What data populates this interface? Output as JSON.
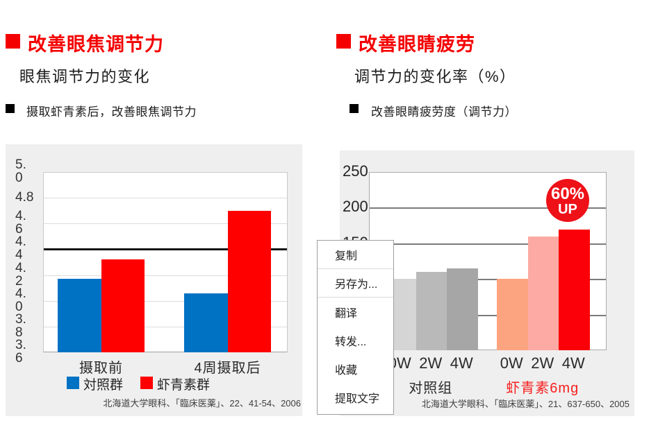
{
  "left_section": {
    "title": "改善眼焦调节力",
    "subtitle": "眼焦调节力的变化",
    "bullet": "摄取虾青素后，改善眼焦调节力",
    "accent_color": "#f40000"
  },
  "right_section": {
    "title": "改善眼睛疲劳",
    "subtitle": "调节力的变化率（%）",
    "bullet": "改善眼睛疲劳度（调节力）",
    "accent_color": "#f40000"
  },
  "context_menu": {
    "items": [
      {
        "name": "copy",
        "label": "复制"
      },
      {
        "name": "save-as",
        "label": "另存为..."
      },
      {
        "name": "translate",
        "label": "翻译"
      },
      {
        "name": "forward",
        "label": "转发..."
      },
      {
        "name": "favorite",
        "label": "收藏"
      },
      {
        "name": "extract-text",
        "label": "提取文字"
      }
    ],
    "dividers_after": [
      0,
      1
    ]
  },
  "chart_data": [
    {
      "type": "bar",
      "title": "眼焦调节力的变化",
      "categories": [
        "摄取前",
        "4周摄取后"
      ],
      "series": [
        {
          "name": "対照群",
          "color": "#0072c4",
          "values": [
            4.17,
            4.06
          ]
        },
        {
          "name": "虾青素群",
          "color": "#ff0000",
          "values": [
            4.32,
            4.7
          ]
        }
      ],
      "ylim": [
        3.6,
        5.0
      ],
      "ytick_step": 0.2,
      "ytick_labels": [
        "5.\n0",
        "4.8",
        "4.\n6",
        "4.\n4",
        "4.\n2",
        "4.\n0",
        "3.\n8",
        "3.\n6"
      ],
      "ytick_values": [
        5.0,
        4.8,
        4.6,
        4.4,
        4.2,
        4.0,
        3.8,
        3.6
      ],
      "ref_line_y": 4.4,
      "grid": true,
      "legend_position": "bottom",
      "source": "北海道大学眼科、「臨床医薬」、22、41-54、2006"
    },
    {
      "type": "bar",
      "title": "调节力的变化率（%）",
      "categories": [
        "0W",
        "2W",
        "4W"
      ],
      "groups": [
        {
          "label": "对照组",
          "label_color": "#2b2b2b",
          "values": [
            100,
            110,
            115
          ],
          "bar_colors": [
            "#d5d5d5",
            "#b9b9b9",
            "#a6a6a6"
          ]
        },
        {
          "label": "虾青素6mg",
          "label_color": "#f71f1f",
          "values": [
            100,
            160,
            169
          ],
          "bar_colors": [
            "#fca47f",
            "#fcaaa3",
            "#fb0009"
          ]
        }
      ],
      "ylim": [
        0,
        250
      ],
      "ytick_step": 50,
      "yticks_visible": [
        {
          "label": "250",
          "value": 250
        },
        {
          "label": "200",
          "value": 200
        },
        {
          "label": "150",
          "value": 150
        }
      ],
      "badge": {
        "line1": "60%",
        "line2": "UP",
        "color": "#ee1118"
      },
      "grid": true,
      "source": "北海道大学眼科、「臨床医薬」、21、637-650、2005"
    }
  ]
}
